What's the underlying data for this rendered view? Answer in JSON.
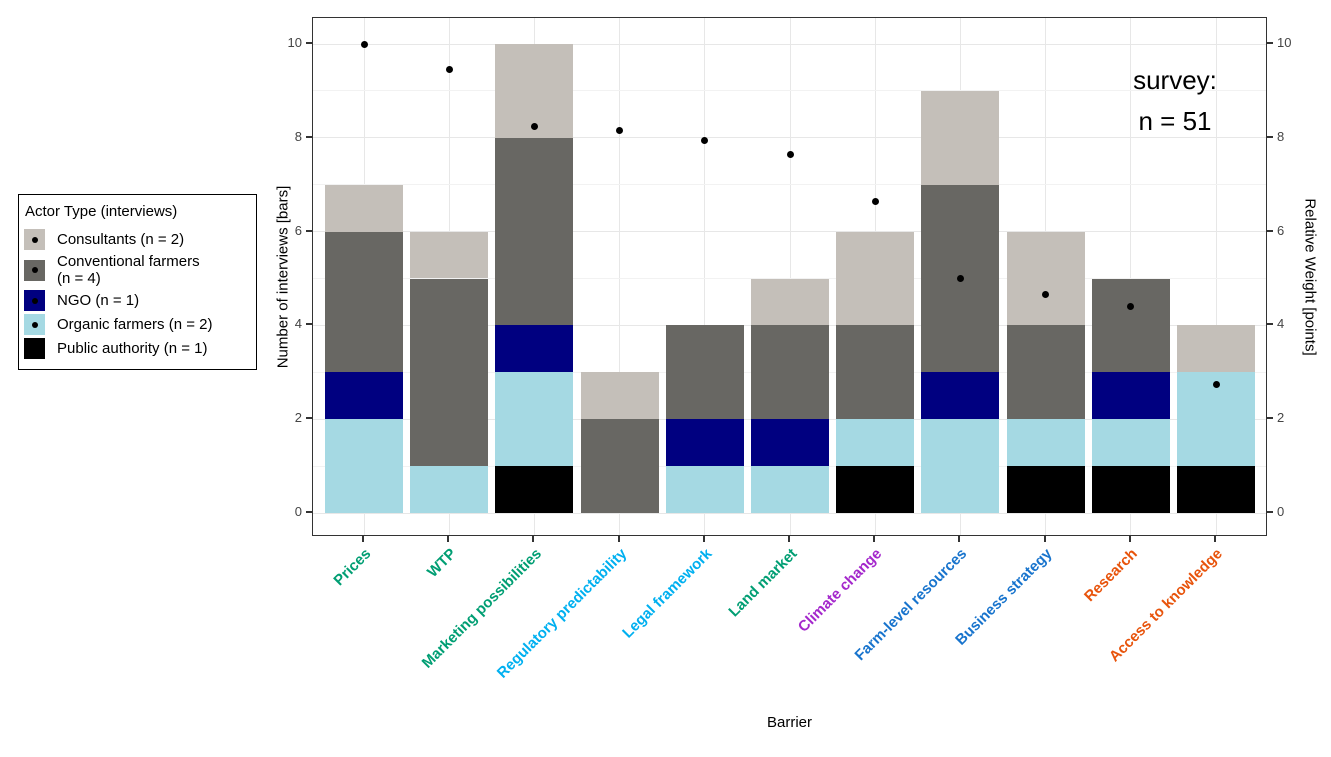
{
  "annotation": {
    "line1": "survey:",
    "line2": "n = 51"
  },
  "axes": {
    "x_title": "Barrier",
    "y_left_title": "Number of interviews [bars]",
    "y_right_title": "Relative Weight [points]",
    "y_tick_values": [
      0,
      2,
      4,
      6,
      8,
      10
    ]
  },
  "legend": {
    "title": "Actor Type (interviews)",
    "items": [
      {
        "label": "Consultants (n = 2)",
        "color": "#C4BFB9",
        "dot": true
      },
      {
        "label": "Conventional farmers",
        "label_line2": " (n = 4)",
        "color": "#686763",
        "dot": true
      },
      {
        "label": "NGO (n = 1)",
        "color": "#000080",
        "dot": true
      },
      {
        "label": "Organic farmers (n = 2)",
        "color": "#A5D9E3",
        "dot": true
      },
      {
        "label": "Public authority (n = 1)",
        "color": "#000000",
        "dot": false
      }
    ]
  },
  "chart_data": {
    "type": "bar",
    "subtype": "stacked bars with scatter overlay on secondary axis",
    "title": "",
    "xlabel": "Barrier",
    "ylabel_left": "Number of interviews [bars]",
    "ylabel_right": "Relative Weight [points]",
    "ylim": [
      0,
      10
    ],
    "grid": "horizontal major+minor and vertical major, light gray",
    "legend_position": "outside left",
    "categories": [
      "Prices",
      "WTP",
      "Marketing possibilities",
      "Regulatory predictability",
      "Legal framework",
      "Land market",
      "Climate change",
      "Farm-level resources",
      "Business strategy",
      "Research",
      "Access to knowledge"
    ],
    "category_label_colors": [
      "#009E73",
      "#009E73",
      "#009E73",
      "#00B0F0",
      "#00B0F0",
      "#009E73",
      "#A428CC",
      "#1874CD",
      "#1874CD",
      "#E8540C",
      "#E8540C"
    ],
    "stack_order_bottom_to_top": [
      "Public authority (n = 1)",
      "Organic farmers (n = 2)",
      "NGO (n = 1)",
      "Conventional farmers (n = 4)",
      "Consultants (n = 2)"
    ],
    "series": [
      {
        "name": "Consultants (n = 2)",
        "color": "#C4BFB9",
        "values": [
          1,
          1,
          2,
          1,
          0,
          1,
          2,
          2,
          2,
          0,
          1
        ]
      },
      {
        "name": "Conventional farmers (n = 4)",
        "color": "#686763",
        "values": [
          3,
          4,
          4,
          2,
          2,
          2,
          2,
          4,
          2,
          2,
          0
        ]
      },
      {
        "name": "NGO (n = 1)",
        "color": "#000080",
        "values": [
          1,
          0,
          1,
          0,
          1,
          1,
          0,
          1,
          0,
          1,
          0
        ]
      },
      {
        "name": "Organic farmers (n = 2)",
        "color": "#A5D9E3",
        "values": [
          2,
          1,
          2,
          0,
          1,
          1,
          1,
          2,
          1,
          1,
          2
        ]
      },
      {
        "name": "Public authority (n = 1)",
        "color": "#000000",
        "values": [
          0,
          0,
          1,
          0,
          0,
          0,
          1,
          0,
          1,
          1,
          1
        ]
      }
    ],
    "bar_totals": [
      7,
      6,
      10,
      3,
      4,
      5,
      6,
      9,
      6,
      5,
      4
    ],
    "points_series": {
      "name": "Relative Weight [points]",
      "color": "#000000",
      "values": [
        10,
        9.45,
        8.25,
        8.15,
        7.95,
        7.65,
        6.65,
        5.0,
        4.65,
        4.4,
        2.75
      ]
    }
  }
}
